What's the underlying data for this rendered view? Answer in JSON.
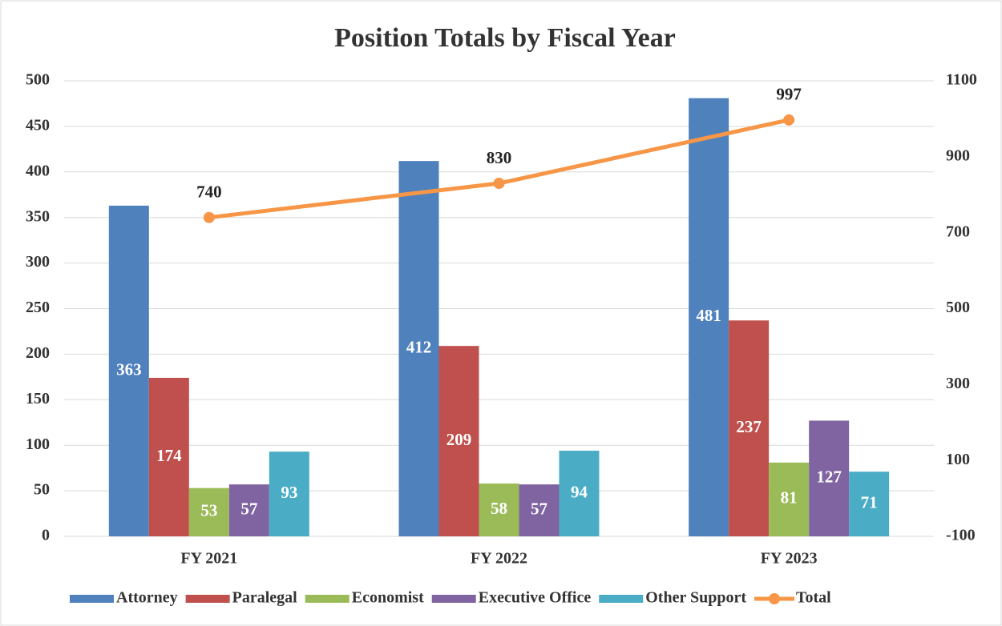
{
  "chart_data": {
    "type": "bar",
    "title": "Position Totals by Fiscal Year",
    "categories": [
      "FY 2021",
      "FY 2022",
      "FY 2023"
    ],
    "series": [
      {
        "name": "Attorney",
        "color": "#4f81bd",
        "values": [
          363,
          412,
          481
        ]
      },
      {
        "name": "Paralegal",
        "color": "#c0504d",
        "values": [
          174,
          209,
          237
        ]
      },
      {
        "name": "Economist",
        "color": "#9bbb59",
        "values": [
          53,
          58,
          81
        ]
      },
      {
        "name": "Executive Office",
        "color": "#8064a2",
        "values": [
          57,
          57,
          127
        ]
      },
      {
        "name": "Other Support",
        "color": "#4bacc6",
        "values": [
          93,
          94,
          71
        ]
      },
      {
        "name": "Total",
        "color": "#f79646",
        "type": "line",
        "axis": "y2",
        "values": [
          740,
          830,
          997
        ]
      }
    ],
    "ylim": [
      0,
      500
    ],
    "yticks": [
      0,
      50,
      100,
      150,
      200,
      250,
      300,
      350,
      400,
      450,
      500
    ],
    "y2lim": [
      -100,
      1100
    ],
    "y2ticks": [
      -100,
      100,
      300,
      500,
      700,
      900,
      1100
    ],
    "grid": true,
    "legend": "bottom"
  }
}
